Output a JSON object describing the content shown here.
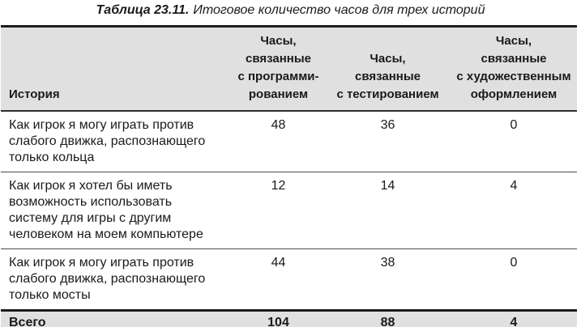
{
  "title": {
    "label": "Таблица 23.11.",
    "caption": "Итоговое количество часов для трех историй"
  },
  "table": {
    "columns": [
      {
        "label": "История"
      },
      {
        "label": "Часы,\nсвязанные\nс программи-\nрованием"
      },
      {
        "label": "Часы,\nсвязанные\nс тестированием"
      },
      {
        "label": "Часы,\nсвязанные\nс художественным\nоформлением"
      }
    ],
    "rows": [
      {
        "story": "Как игрок я могу играть против\nслабого движка, распознающего\nтолько кольца",
        "programming": "48",
        "testing": "36",
        "art": "0"
      },
      {
        "story": "Как игрок я хотел бы иметь\nвозможность использовать\nсистему для игры с другим\nчеловеком на моем компьютере",
        "programming": "12",
        "testing": "14",
        "art": "4"
      },
      {
        "story": "Как игрок я могу играть против\nслабого движка, распознающего\nтолько мосты",
        "programming": "44",
        "testing": "38",
        "art": "0"
      }
    ],
    "totals": {
      "label": "Всего",
      "programming": "104",
      "testing": "88",
      "art": "4"
    }
  },
  "colors": {
    "header_bg": "#e0e0e0",
    "border_dark": "#1c1c1c",
    "separator": "#4a4a4a",
    "text": "#1a1a1a",
    "page_bg": "#ffffff"
  }
}
